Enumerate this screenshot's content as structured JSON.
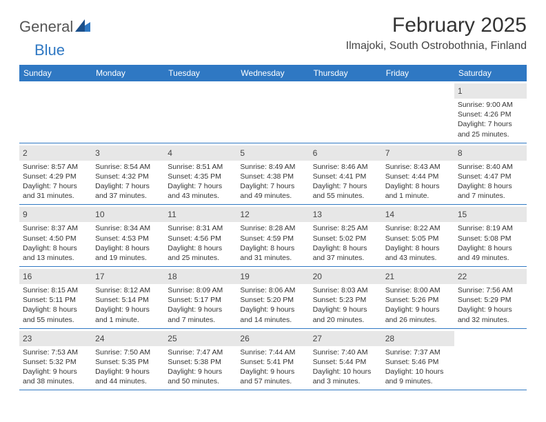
{
  "logo": {
    "part1": "General",
    "part2": "Blue",
    "mark_color": "#2f78c3"
  },
  "title": "February 2025",
  "location": "Ilmajoki, South Ostrobothnia, Finland",
  "header_bg": "#2f78c3",
  "header_fg": "#ffffff",
  "daynum_bg": "#e7e7e7",
  "divider_color": "#2f78c3",
  "day_names": [
    "Sunday",
    "Monday",
    "Tuesday",
    "Wednesday",
    "Thursday",
    "Friday",
    "Saturday"
  ],
  "weeks": [
    [
      null,
      null,
      null,
      null,
      null,
      null,
      {
        "n": "1",
        "sr": "Sunrise: 9:00 AM",
        "ss": "Sunset: 4:26 PM",
        "d1": "Daylight: 7 hours",
        "d2": "and 25 minutes."
      }
    ],
    [
      {
        "n": "2",
        "sr": "Sunrise: 8:57 AM",
        "ss": "Sunset: 4:29 PM",
        "d1": "Daylight: 7 hours",
        "d2": "and 31 minutes."
      },
      {
        "n": "3",
        "sr": "Sunrise: 8:54 AM",
        "ss": "Sunset: 4:32 PM",
        "d1": "Daylight: 7 hours",
        "d2": "and 37 minutes."
      },
      {
        "n": "4",
        "sr": "Sunrise: 8:51 AM",
        "ss": "Sunset: 4:35 PM",
        "d1": "Daylight: 7 hours",
        "d2": "and 43 minutes."
      },
      {
        "n": "5",
        "sr": "Sunrise: 8:49 AM",
        "ss": "Sunset: 4:38 PM",
        "d1": "Daylight: 7 hours",
        "d2": "and 49 minutes."
      },
      {
        "n": "6",
        "sr": "Sunrise: 8:46 AM",
        "ss": "Sunset: 4:41 PM",
        "d1": "Daylight: 7 hours",
        "d2": "and 55 minutes."
      },
      {
        "n": "7",
        "sr": "Sunrise: 8:43 AM",
        "ss": "Sunset: 4:44 PM",
        "d1": "Daylight: 8 hours",
        "d2": "and 1 minute."
      },
      {
        "n": "8",
        "sr": "Sunrise: 8:40 AM",
        "ss": "Sunset: 4:47 PM",
        "d1": "Daylight: 8 hours",
        "d2": "and 7 minutes."
      }
    ],
    [
      {
        "n": "9",
        "sr": "Sunrise: 8:37 AM",
        "ss": "Sunset: 4:50 PM",
        "d1": "Daylight: 8 hours",
        "d2": "and 13 minutes."
      },
      {
        "n": "10",
        "sr": "Sunrise: 8:34 AM",
        "ss": "Sunset: 4:53 PM",
        "d1": "Daylight: 8 hours",
        "d2": "and 19 minutes."
      },
      {
        "n": "11",
        "sr": "Sunrise: 8:31 AM",
        "ss": "Sunset: 4:56 PM",
        "d1": "Daylight: 8 hours",
        "d2": "and 25 minutes."
      },
      {
        "n": "12",
        "sr": "Sunrise: 8:28 AM",
        "ss": "Sunset: 4:59 PM",
        "d1": "Daylight: 8 hours",
        "d2": "and 31 minutes."
      },
      {
        "n": "13",
        "sr": "Sunrise: 8:25 AM",
        "ss": "Sunset: 5:02 PM",
        "d1": "Daylight: 8 hours",
        "d2": "and 37 minutes."
      },
      {
        "n": "14",
        "sr": "Sunrise: 8:22 AM",
        "ss": "Sunset: 5:05 PM",
        "d1": "Daylight: 8 hours",
        "d2": "and 43 minutes."
      },
      {
        "n": "15",
        "sr": "Sunrise: 8:19 AM",
        "ss": "Sunset: 5:08 PM",
        "d1": "Daylight: 8 hours",
        "d2": "and 49 minutes."
      }
    ],
    [
      {
        "n": "16",
        "sr": "Sunrise: 8:15 AM",
        "ss": "Sunset: 5:11 PM",
        "d1": "Daylight: 8 hours",
        "d2": "and 55 minutes."
      },
      {
        "n": "17",
        "sr": "Sunrise: 8:12 AM",
        "ss": "Sunset: 5:14 PM",
        "d1": "Daylight: 9 hours",
        "d2": "and 1 minute."
      },
      {
        "n": "18",
        "sr": "Sunrise: 8:09 AM",
        "ss": "Sunset: 5:17 PM",
        "d1": "Daylight: 9 hours",
        "d2": "and 7 minutes."
      },
      {
        "n": "19",
        "sr": "Sunrise: 8:06 AM",
        "ss": "Sunset: 5:20 PM",
        "d1": "Daylight: 9 hours",
        "d2": "and 14 minutes."
      },
      {
        "n": "20",
        "sr": "Sunrise: 8:03 AM",
        "ss": "Sunset: 5:23 PM",
        "d1": "Daylight: 9 hours",
        "d2": "and 20 minutes."
      },
      {
        "n": "21",
        "sr": "Sunrise: 8:00 AM",
        "ss": "Sunset: 5:26 PM",
        "d1": "Daylight: 9 hours",
        "d2": "and 26 minutes."
      },
      {
        "n": "22",
        "sr": "Sunrise: 7:56 AM",
        "ss": "Sunset: 5:29 PM",
        "d1": "Daylight: 9 hours",
        "d2": "and 32 minutes."
      }
    ],
    [
      {
        "n": "23",
        "sr": "Sunrise: 7:53 AM",
        "ss": "Sunset: 5:32 PM",
        "d1": "Daylight: 9 hours",
        "d2": "and 38 minutes."
      },
      {
        "n": "24",
        "sr": "Sunrise: 7:50 AM",
        "ss": "Sunset: 5:35 PM",
        "d1": "Daylight: 9 hours",
        "d2": "and 44 minutes."
      },
      {
        "n": "25",
        "sr": "Sunrise: 7:47 AM",
        "ss": "Sunset: 5:38 PM",
        "d1": "Daylight: 9 hours",
        "d2": "and 50 minutes."
      },
      {
        "n": "26",
        "sr": "Sunrise: 7:44 AM",
        "ss": "Sunset: 5:41 PM",
        "d1": "Daylight: 9 hours",
        "d2": "and 57 minutes."
      },
      {
        "n": "27",
        "sr": "Sunrise: 7:40 AM",
        "ss": "Sunset: 5:44 PM",
        "d1": "Daylight: 10 hours",
        "d2": "and 3 minutes."
      },
      {
        "n": "28",
        "sr": "Sunrise: 7:37 AM",
        "ss": "Sunset: 5:46 PM",
        "d1": "Daylight: 10 hours",
        "d2": "and 9 minutes."
      },
      null
    ]
  ]
}
